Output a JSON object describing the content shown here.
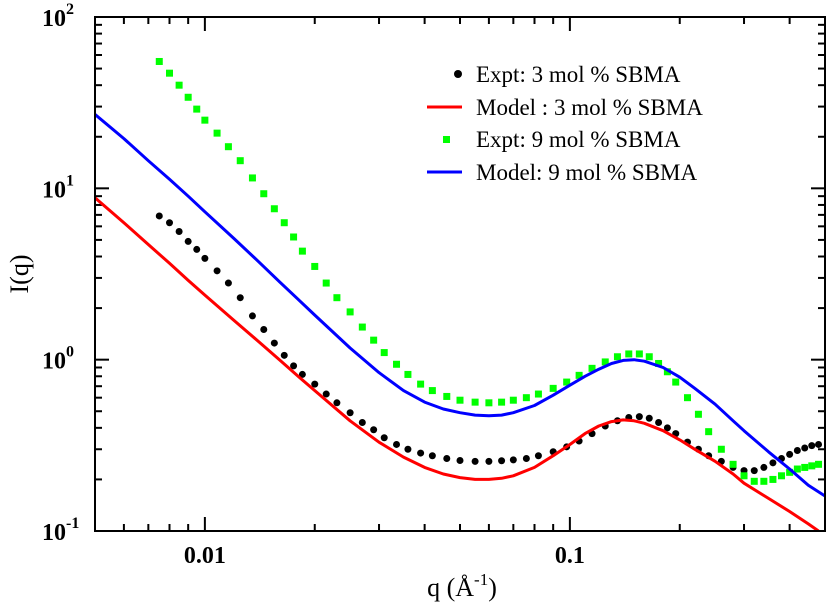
{
  "chart_data": {
    "type": "scatter",
    "xscale": "log",
    "yscale": "log",
    "xlim": [
      0.005,
      0.5
    ],
    "ylim": [
      0.1,
      100
    ],
    "xlabel_main": "q (Å",
    "xlabel_exp": "-1",
    "xlabel_close": ")",
    "ylabel": "I(q)",
    "x_ticks": [
      {
        "value": 0.01,
        "label": "0.01"
      },
      {
        "value": 0.1,
        "label": "0.1"
      }
    ],
    "y_ticks": [
      {
        "value": 0.1,
        "base": "10",
        "exp": "-1"
      },
      {
        "value": 1,
        "base": "10",
        "exp": "0"
      },
      {
        "value": 10,
        "base": "10",
        "exp": "1"
      },
      {
        "value": 100,
        "base": "10",
        "exp": "2"
      }
    ],
    "legend_position": "top-right",
    "series": [
      {
        "name": "Expt: 3 mol % SBMA",
        "kind": "scatter",
        "marker": "circle",
        "color": "#000000",
        "points": [
          [
            0.0075,
            6.9
          ],
          [
            0.008,
            6.3
          ],
          [
            0.0085,
            5.6
          ],
          [
            0.009,
            4.9
          ],
          [
            0.0095,
            4.4
          ],
          [
            0.01,
            3.9
          ],
          [
            0.0108,
            3.3
          ],
          [
            0.0116,
            2.8
          ],
          [
            0.0125,
            2.3
          ],
          [
            0.0135,
            1.8
          ],
          [
            0.0145,
            1.5
          ],
          [
            0.0155,
            1.25
          ],
          [
            0.0165,
            1.06
          ],
          [
            0.0175,
            0.92
          ],
          [
            0.0185,
            0.82
          ],
          [
            0.02,
            0.72
          ],
          [
            0.0215,
            0.63
          ],
          [
            0.023,
            0.56
          ],
          [
            0.025,
            0.49
          ],
          [
            0.027,
            0.43
          ],
          [
            0.029,
            0.39
          ],
          [
            0.031,
            0.35
          ],
          [
            0.0335,
            0.32
          ],
          [
            0.036,
            0.3
          ],
          [
            0.039,
            0.285
          ],
          [
            0.042,
            0.275
          ],
          [
            0.046,
            0.265
          ],
          [
            0.05,
            0.258
          ],
          [
            0.055,
            0.255
          ],
          [
            0.06,
            0.255
          ],
          [
            0.065,
            0.257
          ],
          [
            0.07,
            0.26
          ],
          [
            0.076,
            0.265
          ],
          [
            0.082,
            0.275
          ],
          [
            0.09,
            0.29
          ],
          [
            0.098,
            0.31
          ],
          [
            0.106,
            0.335
          ],
          [
            0.115,
            0.37
          ],
          [
            0.125,
            0.41
          ],
          [
            0.135,
            0.44
          ],
          [
            0.145,
            0.46
          ],
          [
            0.155,
            0.465
          ],
          [
            0.165,
            0.455
          ],
          [
            0.175,
            0.43
          ],
          [
            0.185,
            0.4
          ],
          [
            0.195,
            0.37
          ],
          [
            0.21,
            0.33
          ],
          [
            0.225,
            0.3
          ],
          [
            0.24,
            0.275
          ],
          [
            0.26,
            0.255
          ],
          [
            0.28,
            0.235
          ],
          [
            0.3,
            0.225
          ],
          [
            0.32,
            0.225
          ],
          [
            0.34,
            0.235
          ],
          [
            0.36,
            0.25
          ],
          [
            0.38,
            0.265
          ],
          [
            0.4,
            0.28
          ],
          [
            0.42,
            0.295
          ],
          [
            0.44,
            0.305
          ],
          [
            0.46,
            0.315
          ],
          [
            0.48,
            0.32
          ]
        ]
      },
      {
        "name": "Model : 3 mol % SBMA",
        "kind": "line",
        "color": "#ff0000",
        "points": [
          [
            0.005,
            8.8
          ],
          [
            0.006,
            6.3
          ],
          [
            0.007,
            4.7
          ],
          [
            0.008,
            3.65
          ],
          [
            0.009,
            2.9
          ],
          [
            0.01,
            2.38
          ],
          [
            0.012,
            1.7
          ],
          [
            0.014,
            1.28
          ],
          [
            0.016,
            1.0
          ],
          [
            0.018,
            0.8
          ],
          [
            0.02,
            0.66
          ],
          [
            0.025,
            0.44
          ],
          [
            0.03,
            0.33
          ],
          [
            0.035,
            0.27
          ],
          [
            0.04,
            0.235
          ],
          [
            0.045,
            0.215
          ],
          [
            0.05,
            0.205
          ],
          [
            0.055,
            0.2
          ],
          [
            0.06,
            0.2
          ],
          [
            0.065,
            0.203
          ],
          [
            0.07,
            0.21
          ],
          [
            0.08,
            0.235
          ],
          [
            0.09,
            0.275
          ],
          [
            0.1,
            0.32
          ],
          [
            0.11,
            0.37
          ],
          [
            0.12,
            0.41
          ],
          [
            0.13,
            0.435
          ],
          [
            0.14,
            0.445
          ],
          [
            0.15,
            0.44
          ],
          [
            0.16,
            0.425
          ],
          [
            0.18,
            0.385
          ],
          [
            0.2,
            0.34
          ],
          [
            0.22,
            0.3
          ],
          [
            0.25,
            0.255
          ],
          [
            0.28,
            0.215
          ],
          [
            0.3,
            0.19
          ],
          [
            0.35,
            0.155
          ],
          [
            0.4,
            0.13
          ],
          [
            0.45,
            0.11
          ],
          [
            0.48,
            0.1
          ]
        ]
      },
      {
        "name": "Expt: 9 mol % SBMA",
        "kind": "scatter",
        "marker": "square",
        "color": "#00ff00",
        "points": [
          [
            0.0075,
            55
          ],
          [
            0.008,
            47
          ],
          [
            0.0085,
            40
          ],
          [
            0.009,
            34
          ],
          [
            0.0095,
            29
          ],
          [
            0.01,
            25
          ],
          [
            0.0108,
            21
          ],
          [
            0.0116,
            17.5
          ],
          [
            0.0125,
            14.5
          ],
          [
            0.0135,
            11.5
          ],
          [
            0.0145,
            9.3
          ],
          [
            0.0155,
            7.6
          ],
          [
            0.0165,
            6.3
          ],
          [
            0.0175,
            5.2
          ],
          [
            0.0185,
            4.3
          ],
          [
            0.02,
            3.5
          ],
          [
            0.0215,
            2.8
          ],
          [
            0.023,
            2.3
          ],
          [
            0.025,
            1.9
          ],
          [
            0.027,
            1.55
          ],
          [
            0.029,
            1.3
          ],
          [
            0.031,
            1.1
          ],
          [
            0.0335,
            0.94
          ],
          [
            0.036,
            0.82
          ],
          [
            0.039,
            0.72
          ],
          [
            0.042,
            0.66
          ],
          [
            0.046,
            0.61
          ],
          [
            0.05,
            0.58
          ],
          [
            0.055,
            0.565
          ],
          [
            0.06,
            0.56
          ],
          [
            0.065,
            0.565
          ],
          [
            0.07,
            0.58
          ],
          [
            0.076,
            0.6
          ],
          [
            0.082,
            0.63
          ],
          [
            0.09,
            0.68
          ],
          [
            0.098,
            0.74
          ],
          [
            0.106,
            0.81
          ],
          [
            0.115,
            0.89
          ],
          [
            0.125,
            0.97
          ],
          [
            0.135,
            1.04
          ],
          [
            0.145,
            1.08
          ],
          [
            0.155,
            1.08
          ],
          [
            0.165,
            1.04
          ],
          [
            0.175,
            0.95
          ],
          [
            0.185,
            0.85
          ],
          [
            0.195,
            0.74
          ],
          [
            0.21,
            0.6
          ],
          [
            0.225,
            0.48
          ],
          [
            0.24,
            0.38
          ],
          [
            0.26,
            0.3
          ],
          [
            0.28,
            0.245
          ],
          [
            0.3,
            0.21
          ],
          [
            0.32,
            0.195
          ],
          [
            0.34,
            0.195
          ],
          [
            0.36,
            0.2
          ],
          [
            0.38,
            0.21
          ],
          [
            0.4,
            0.22
          ],
          [
            0.42,
            0.23
          ],
          [
            0.44,
            0.235
          ],
          [
            0.46,
            0.24
          ],
          [
            0.48,
            0.245
          ]
        ]
      },
      {
        "name": "Model: 9 mol % SBMA",
        "kind": "line",
        "color": "#0000ff",
        "points": [
          [
            0.005,
            27
          ],
          [
            0.006,
            19.5
          ],
          [
            0.007,
            14.5
          ],
          [
            0.008,
            11.3
          ],
          [
            0.009,
            9.0
          ],
          [
            0.01,
            7.3
          ],
          [
            0.012,
            5.1
          ],
          [
            0.014,
            3.75
          ],
          [
            0.016,
            2.85
          ],
          [
            0.018,
            2.25
          ],
          [
            0.02,
            1.82
          ],
          [
            0.025,
            1.17
          ],
          [
            0.03,
            0.84
          ],
          [
            0.035,
            0.66
          ],
          [
            0.04,
            0.565
          ],
          [
            0.045,
            0.515
          ],
          [
            0.05,
            0.49
          ],
          [
            0.055,
            0.475
          ],
          [
            0.06,
            0.47
          ],
          [
            0.065,
            0.475
          ],
          [
            0.07,
            0.49
          ],
          [
            0.08,
            0.54
          ],
          [
            0.09,
            0.62
          ],
          [
            0.1,
            0.71
          ],
          [
            0.11,
            0.8
          ],
          [
            0.12,
            0.88
          ],
          [
            0.13,
            0.95
          ],
          [
            0.14,
            0.99
          ],
          [
            0.15,
            1.0
          ],
          [
            0.16,
            0.98
          ],
          [
            0.18,
            0.9
          ],
          [
            0.2,
            0.79
          ],
          [
            0.22,
            0.68
          ],
          [
            0.25,
            0.55
          ],
          [
            0.28,
            0.44
          ],
          [
            0.3,
            0.385
          ],
          [
            0.35,
            0.29
          ],
          [
            0.4,
            0.23
          ],
          [
            0.45,
            0.185
          ],
          [
            0.5,
            0.16
          ]
        ]
      }
    ]
  }
}
